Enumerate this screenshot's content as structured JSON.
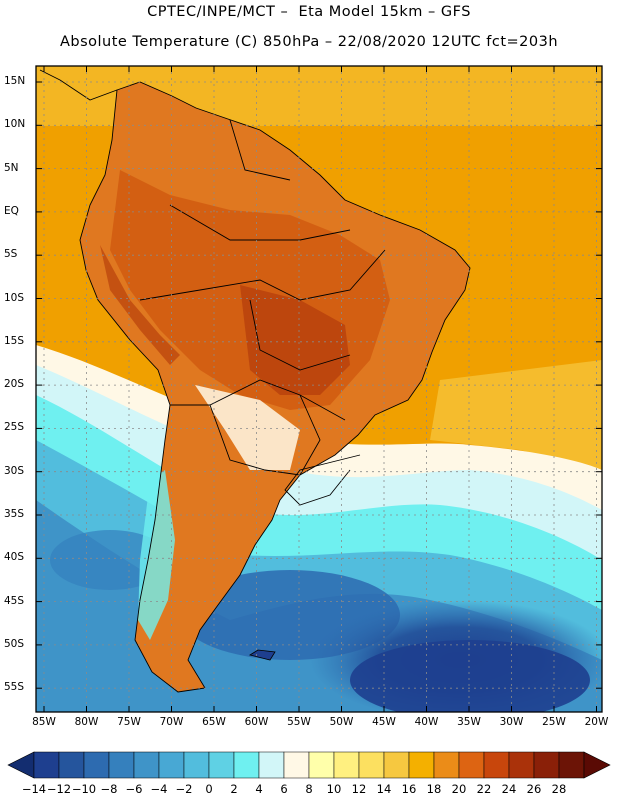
{
  "header": {
    "line1": "CPTEC/INPE/MCT –  Eta Model 15km – GFS",
    "line2": "Absolute Temperature (C) 850hPa – 22/08/2020 12UTC fct=203h"
  },
  "map": {
    "lat_ticks": [
      "15N",
      "10N",
      "5N",
      "EQ",
      "5S",
      "10S",
      "15S",
      "20S",
      "25S",
      "30S",
      "35S",
      "40S",
      "45S",
      "50S",
      "55S"
    ],
    "lon_ticks": [
      "85W",
      "80W",
      "75W",
      "70W",
      "65W",
      "60W",
      "55W",
      "50W",
      "45W",
      "40W",
      "35W",
      "30W",
      "25W",
      "20W"
    ],
    "ocean_color": "#f0a000",
    "land_color": "#e07820"
  },
  "colorbar": {
    "labels": [
      "−14",
      "−12",
      "−10",
      "−8",
      "−6",
      "−4",
      "−2",
      "0",
      "2",
      "4",
      "6",
      "8",
      "10",
      "12",
      "14",
      "16",
      "18",
      "20",
      "22",
      "24",
      "26",
      "28"
    ],
    "colors": [
      "#1e3f8f",
      "#25559d",
      "#2d6bb0",
      "#3580bd",
      "#3f94c8",
      "#48a8d4",
      "#52bddd",
      "#5fd1e4",
      "#6ff0f0",
      "#d2f6f8",
      "#fff8e6",
      "#ffffaa",
      "#fff080",
      "#fce060",
      "#f6c840",
      "#f4b000",
      "#eb8c18",
      "#dd6412",
      "#c8460c",
      "#aa320a",
      "#8a2008",
      "#6c1406"
    ]
  }
}
